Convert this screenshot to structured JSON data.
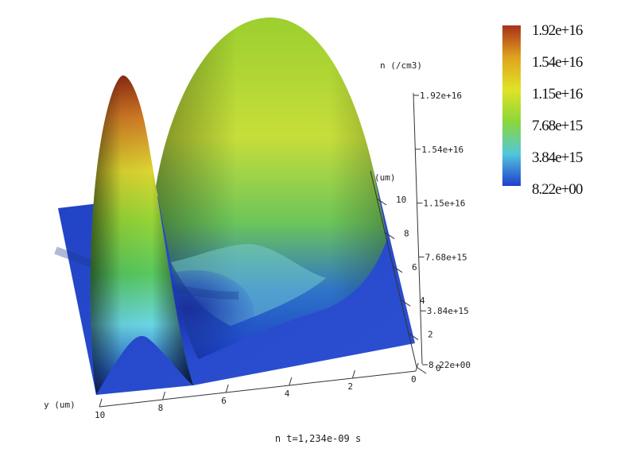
{
  "chart_data": {
    "type": "surface",
    "title": "n t=1,234e-09 s",
    "zlabel": "n (/cm3)",
    "xlabel": "(um)",
    "ylabel": "y (um)",
    "zlim": [
      8.22,
      1.92e+16
    ],
    "z_ticks": [
      "1.92e+16",
      "1.54e+16",
      "1.15e+16",
      "7.68e+15",
      "3.84e+15",
      "8.22e+00"
    ],
    "x_ticks": [
      "10",
      "8",
      "6",
      "4",
      "2",
      "0"
    ],
    "y_ticks": [
      "10",
      "8",
      "6",
      "4",
      "2",
      "0"
    ],
    "colorbar": {
      "labels": [
        "1.92e+16",
        "1.54e+16",
        "1.15e+16",
        "7.68e+15",
        "3.84e+15",
        "8.22e+00"
      ],
      "colors": [
        "#a8301a",
        "#e0a31e",
        "#dfe326",
        "#8cd63a",
        "#52c7d9",
        "#1f3ecf"
      ]
    },
    "peaks": [
      {
        "name": "narrow peak",
        "y_um": 9.2,
        "x_um": 8.0,
        "value": 1.92e+16
      },
      {
        "name": "broad peak",
        "y_um": 4.2,
        "x_um": 5.5,
        "value": 1.92e+16
      }
    ]
  }
}
